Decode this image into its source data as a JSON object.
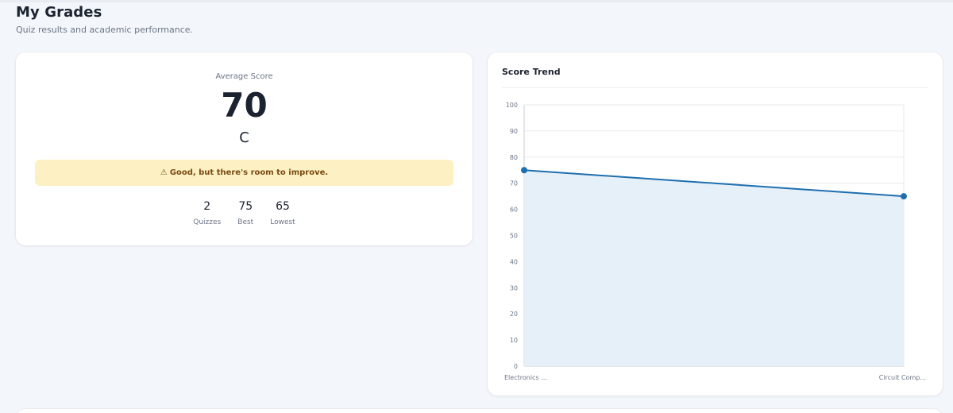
{
  "header": {
    "title": "My Grades",
    "subtitle": "Quiz results and academic performance."
  },
  "summary": {
    "average_label": "Average Score",
    "average_value": "70",
    "letter_grade": "C",
    "banner": {
      "icon": "warning-icon",
      "icon_glyph": "⚠",
      "text": "Good, but there's room to improve.",
      "background": "#fdf1c4",
      "text_color": "#7a4a12"
    },
    "stats": [
      {
        "value": "2",
        "label": "Quizzes"
      },
      {
        "value": "75",
        "label": "Best"
      },
      {
        "value": "65",
        "label": "Lowest"
      }
    ]
  },
  "chart": {
    "title": "Score Trend"
  },
  "chart_data": {
    "type": "area",
    "title": "Score Trend",
    "categories": [
      "Electronics ...",
      "Circuit Comp..."
    ],
    "series": [
      {
        "values": [
          75,
          65
        ]
      }
    ],
    "ylim": [
      0,
      100
    ],
    "y_ticks": [
      0,
      10,
      20,
      30,
      40,
      50,
      60,
      70,
      80,
      90,
      100
    ],
    "grid": true,
    "legend": "none",
    "line_color": "#1f6fae",
    "fill_color": "#e6f0f9"
  }
}
